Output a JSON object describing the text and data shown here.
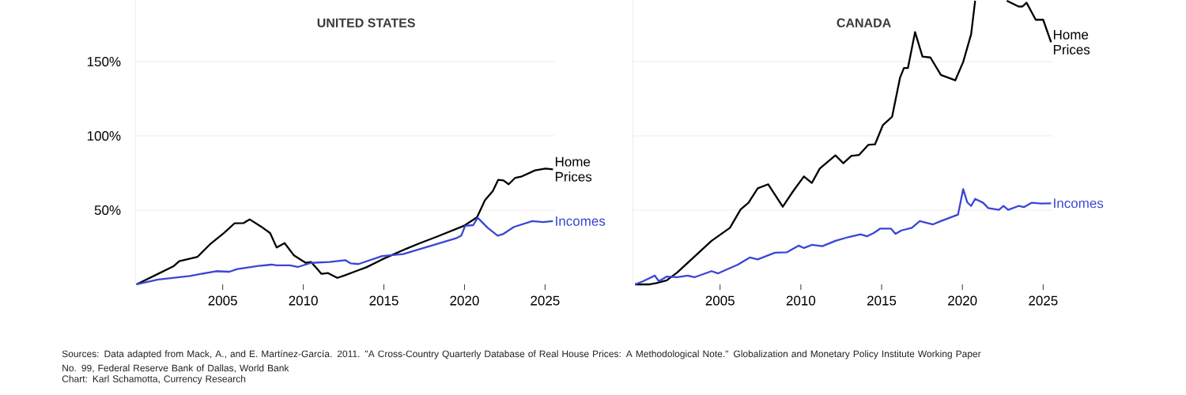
{
  "chart_data": [
    {
      "type": "line",
      "title": "UNITED STATES",
      "xlim": [
        1999.6,
        2025.6
      ],
      "ylim": [
        0,
        191.5
      ],
      "xticks": [
        2005,
        2010,
        2015,
        2020,
        2025
      ],
      "yticks": [
        {
          "value": 50,
          "label": "50%"
        },
        {
          "value": 100,
          "label": "100%"
        },
        {
          "value": 150,
          "label": "150%"
        }
      ],
      "grid": "y",
      "series": [
        {
          "name": "Home Prices",
          "color": "#000000",
          "x": [
            1999.65,
            2000.99,
            2001.97,
            2002.3,
            2003.44,
            2004.26,
            2005.08,
            2005.73,
            2006.3,
            2006.67,
            2007.37,
            2007.94,
            2008.35,
            2008.84,
            2009.42,
            2010.15,
            2010.48,
            2011.13,
            2011.54,
            2012.11,
            2012.6,
            2013.26,
            2013.91,
            2014.89,
            2016.36,
            2017.18,
            2018.33,
            2019.96,
            2020.78,
            2021.27,
            2021.76,
            2022.09,
            2022.42,
            2022.74,
            2023.15,
            2023.56,
            2024.38,
            2025.03,
            2025.49
          ],
          "values": [
            0,
            7.1,
            12.4,
            15.6,
            18.6,
            27.5,
            34.6,
            41.1,
            41.3,
            43.8,
            39.0,
            34.6,
            24.8,
            27.8,
            19.5,
            14.5,
            15.1,
            7.1,
            7.6,
            4.4,
            6.2,
            8.9,
            11.5,
            16.8,
            23.9,
            27.5,
            32.3,
            39.4,
            45.2,
            56.7,
            62.9,
            70.4,
            70.0,
            67.4,
            71.8,
            72.7,
            76.8,
            78.0,
            77.5
          ]
        },
        {
          "name": "Incomes",
          "color": "#3a46d4",
          "x": [
            1999.65,
            2000.99,
            2001.97,
            2002.95,
            2004.59,
            2005.41,
            2005.9,
            2007.21,
            2008.02,
            2008.35,
            2009.17,
            2009.66,
            2010.48,
            2011.62,
            2012.6,
            2012.93,
            2013.42,
            2014.89,
            2016.2,
            2017.67,
            2019.47,
            2019.8,
            2020.04,
            2020.54,
            2020.82,
            2021.44,
            2022.06,
            2022.42,
            2023.07,
            2024.21,
            2024.87,
            2025.49
          ],
          "values": [
            0,
            3.2,
            4.4,
            5.7,
            8.9,
            8.5,
            10.3,
            12.4,
            13.3,
            12.8,
            12.8,
            11.7,
            14.5,
            15.1,
            16.3,
            14.2,
            13.7,
            19.1,
            20.4,
            25.2,
            31.0,
            32.8,
            39.4,
            39.9,
            44.9,
            38.1,
            32.8,
            34.0,
            38.7,
            42.6,
            42.0,
            42.6
          ]
        }
      ],
      "annotations": [
        "Sources: Data adapted from Mack, A., and E. Martínez-García. 2011. \"A Cross-Country Quarterly Database of Real House Prices: A Methodological Note.\" Globalization and Monetary Policy Institute Working Paper No. 99, Federal Reserve Bank of Dallas, World Bank",
        "Chart: Karl Schamotta, Currency Research"
      ]
    },
    {
      "type": "line",
      "title": "CANADA",
      "xlim": [
        1999.6,
        2025.6
      ],
      "ylim": [
        0,
        191.5
      ],
      "xticks": [
        2005,
        2010,
        2015,
        2020,
        2025
      ],
      "yticks": [
        {
          "value": 50,
          "label": null
        },
        {
          "value": 100,
          "label": null
        },
        {
          "value": 150,
          "label": null
        }
      ],
      "grid": "y",
      "tick_labels": "x",
      "series": [
        {
          "name": "Home Prices",
          "color": "#000000",
          "x": [
            1999.74,
            2000.64,
            2001.05,
            2001.7,
            2002.35,
            2003.49,
            2004.47,
            2005.61,
            2006.27,
            2006.76,
            2007.33,
            2007.98,
            2008.88,
            2009.53,
            2010.19,
            2010.68,
            2011.17,
            2012.14,
            2012.63,
            2013.12,
            2013.61,
            2014.18,
            2014.59,
            2015.08,
            2015.65,
            2016.14,
            2016.38,
            2016.63,
            2017.07,
            2017.53,
            2018.02,
            2018.67,
            2019.56,
            2020.05,
            2020.54,
            2020.79,
            2021.8,
            2022.75,
            2023.48,
            2023.72,
            2023.97,
            2024.54,
            2025.0,
            2025.49
          ],
          "values": [
            0,
            0,
            0.9,
            2.7,
            8.0,
            19.5,
            29.3,
            38.1,
            50.5,
            55.0,
            64.7,
            67.4,
            52.3,
            62.9,
            72.7,
            68.3,
            78.0,
            86.9,
            81.6,
            86.5,
            87.2,
            94.0,
            94.3,
            107.3,
            112.9,
            139.2,
            145.7,
            145.7,
            169.9,
            153.4,
            152.8,
            141.0,
            137.4,
            149.8,
            168.4,
            191,
            null,
            191,
            187.1,
            187.1,
            189.7,
            178.2,
            178.2,
            163.1
          ]
        },
        {
          "name": "Incomes",
          "color": "#3a46d4",
          "x": [
            1999.74,
            2000.23,
            2000.96,
            2001.21,
            2001.7,
            2002.35,
            2003.0,
            2003.41,
            2004.47,
            2004.88,
            2005.37,
            2006.1,
            2006.84,
            2007.33,
            2008.39,
            2009.12,
            2009.86,
            2010.19,
            2010.68,
            2011.33,
            2012.14,
            2012.96,
            2013.69,
            2014.1,
            2014.51,
            2014.92,
            2015.57,
            2015.86,
            2016.22,
            2016.87,
            2017.36,
            2018.18,
            2018.67,
            2019.73,
            2020.05,
            2020.3,
            2020.54,
            2020.79,
            2021.28,
            2021.6,
            2022.26,
            2022.55,
            2022.83,
            2023.48,
            2023.81,
            2024.3,
            2024.87,
            2025.49
          ],
          "values": [
            0,
            2.1,
            5.9,
            2.1,
            5.3,
            4.8,
            5.9,
            4.8,
            8.9,
            7.4,
            9.8,
            13.3,
            18.1,
            16.8,
            21.3,
            21.6,
            26.1,
            24.5,
            26.6,
            25.7,
            29.3,
            31.9,
            33.7,
            32.4,
            34.6,
            37.6,
            37.6,
            34.0,
            36.3,
            38.1,
            42.6,
            40.4,
            42.6,
            47.0,
            64.2,
            55.3,
            52.8,
            57.6,
            55.0,
            51.4,
            50.2,
            52.8,
            50.2,
            52.8,
            52.0,
            55.0,
            54.4,
            54.6
          ]
        }
      ]
    }
  ]
}
